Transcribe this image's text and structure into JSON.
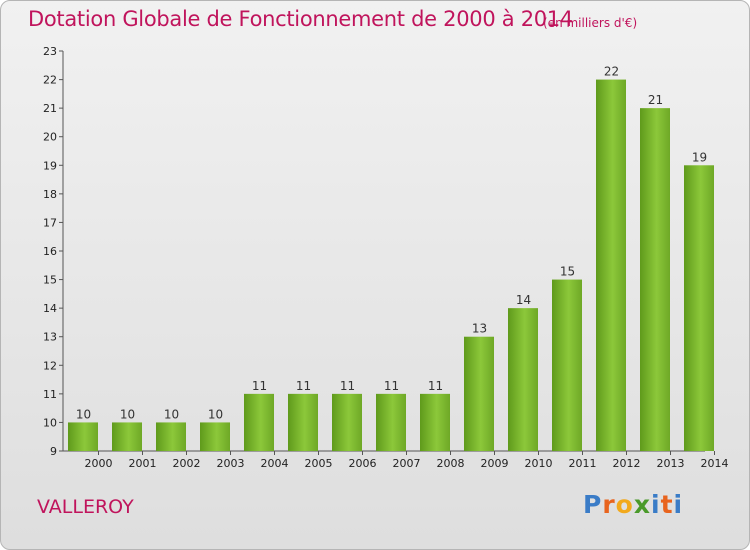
{
  "chart_data": {
    "type": "bar",
    "title": "Dotation Globale de Fonctionnement de 2000 à 2014",
    "unit": "(en milliers d'€)",
    "categories": [
      "2000",
      "2001",
      "2002",
      "2003",
      "2004",
      "2005",
      "2006",
      "2007",
      "2008",
      "2009",
      "2010",
      "2011",
      "2012",
      "2013",
      "2014"
    ],
    "values": [
      10,
      10,
      10,
      10,
      11,
      11,
      11,
      11,
      11,
      13,
      14,
      15,
      22,
      21,
      19
    ],
    "ylim": [
      9,
      23
    ],
    "yticks": [
      9,
      10,
      11,
      12,
      13,
      14,
      15,
      16,
      17,
      18,
      19,
      20,
      21,
      22,
      23
    ],
    "grid": false,
    "bar_color": "#7ab62e"
  },
  "commune": "VALLEROY",
  "logo": {
    "letters": [
      "P",
      "r",
      "o",
      "x",
      "i",
      "t",
      "i"
    ],
    "colors": [
      "#3a7cc7",
      "#e8641e",
      "#f2a91c",
      "#4a9a2a",
      "#3a7cc7",
      "#e8641e",
      "#3a7cc7"
    ]
  }
}
